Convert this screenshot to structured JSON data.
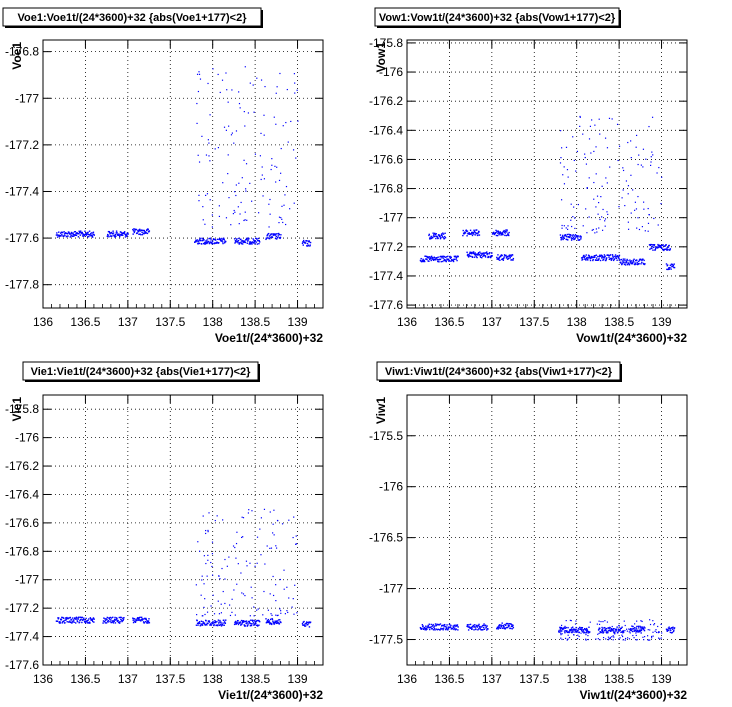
{
  "chart_data": [
    {
      "type": "scatter",
      "title": "Voe1:Voe1t/(24*3600)+32 {abs(Voe1+177)<2}",
      "xlabel": "Voe1t/(24*3600)+32",
      "ylabel": "Voe1",
      "xlim": [
        136,
        139.3
      ],
      "ylim": [
        -177.9,
        -176.75
      ],
      "xticks": [
        136,
        136.5,
        137,
        137.5,
        138,
        138.5,
        139
      ],
      "xtick_labels": [
        "136",
        "136.5",
        "137",
        "137.5",
        "138",
        "138.5",
        "139"
      ],
      "yticks": [
        -176.8,
        -177,
        -177.2,
        -177.4,
        -177.6,
        -177.8
      ],
      "ytick_labels": [
        "-176.8",
        "-177",
        "-177.2",
        "-177.4",
        "-177.6",
        "-177.8"
      ],
      "grid": true,
      "marker_color": "#0000ff",
      "bands": [
        {
          "x": [
            136.15,
            136.6
          ],
          "y": -177.58
        },
        {
          "x": [
            136.75,
            137.0
          ],
          "y": -177.58
        },
        {
          "x": [
            137.05,
            137.25
          ],
          "y": -177.57
        },
        {
          "x": [
            137.78,
            138.15
          ],
          "y": -177.61
        },
        {
          "x": [
            138.25,
            138.55
          ],
          "y": -177.61
        },
        {
          "x": [
            138.62,
            138.8
          ],
          "y": -177.59
        },
        {
          "x": [
            139.05,
            139.15
          ],
          "y": -177.62
        }
      ],
      "scatter_x": [
        137.8,
        139.0
      ],
      "scatter_y": [
        -177.55,
        -176.85
      ]
    },
    {
      "type": "scatter",
      "title": "Vow1:Vow1t/(24*3600)+32 {abs(Vow1+177)<2}",
      "xlabel": "Vow1t/(24*3600)+32",
      "ylabel": "Vow1",
      "xlim": [
        136,
        139.3
      ],
      "ylim": [
        -177.62,
        -175.78
      ],
      "xticks": [
        136,
        136.5,
        137,
        137.5,
        138,
        138.5,
        139
      ],
      "xtick_labels": [
        "136",
        "136.5",
        "137",
        "137.5",
        "138",
        "138.5",
        "139"
      ],
      "yticks": [
        -175.8,
        -176,
        -176.2,
        -176.4,
        -176.6,
        -176.8,
        -177,
        -177.2,
        -177.4,
        -177.6
      ],
      "ytick_labels": [
        "-175.8",
        "-176",
        "-176.2",
        "-176.4",
        "-176.6",
        "-176.8",
        "-177",
        "-177.2",
        "-177.4",
        "-177.6"
      ],
      "grid": true,
      "marker_color": "#0000ff",
      "bands": [
        {
          "x": [
            136.15,
            136.6
          ],
          "y": -177.28
        },
        {
          "x": [
            136.7,
            137.0
          ],
          "y": -177.25
        },
        {
          "x": [
            137.05,
            137.25
          ],
          "y": -177.27
        },
        {
          "x": [
            136.25,
            136.45
          ],
          "y": -177.12
        },
        {
          "x": [
            136.65,
            136.85
          ],
          "y": -177.1
        },
        {
          "x": [
            137.0,
            137.2
          ],
          "y": -177.1
        },
        {
          "x": [
            137.8,
            138.05
          ],
          "y": -177.13
        },
        {
          "x": [
            138.05,
            138.5
          ],
          "y": -177.27
        },
        {
          "x": [
            138.5,
            138.8
          ],
          "y": -177.3
        },
        {
          "x": [
            138.85,
            139.1
          ],
          "y": -177.2
        },
        {
          "x": [
            139.05,
            139.15
          ],
          "y": -177.33
        }
      ],
      "scatter_x": [
        137.8,
        139.0
      ],
      "scatter_y": [
        -177.1,
        -176.3
      ]
    },
    {
      "type": "scatter",
      "title": "Vie1:Vie1t/(24*3600)+32 {abs(Vie1+177)<2}",
      "xlabel": "Vie1t/(24*3600)+32",
      "ylabel": "Vie1",
      "xlim": [
        136,
        139.3
      ],
      "ylim": [
        -177.6,
        -175.7
      ],
      "xticks": [
        136,
        136.5,
        137,
        137.5,
        138,
        138.5,
        139
      ],
      "xtick_labels": [
        "136",
        "136.5",
        "137",
        "137.5",
        "138",
        "138.5",
        "139"
      ],
      "yticks": [
        -175.8,
        -176,
        -176.2,
        -176.4,
        -176.6,
        -176.8,
        -177,
        -177.2,
        -177.4,
        -177.6
      ],
      "ytick_labels": [
        "-175.8",
        "-176",
        "-176.2",
        "-176.4",
        "-176.6",
        "-176.8",
        "-177",
        "-177.2",
        "-177.4",
        "-177.6"
      ],
      "grid": true,
      "marker_color": "#0000ff",
      "bands": [
        {
          "x": [
            136.15,
            136.6
          ],
          "y": -177.28
        },
        {
          "x": [
            136.7,
            136.95
          ],
          "y": -177.28
        },
        {
          "x": [
            137.05,
            137.25
          ],
          "y": -177.28
        },
        {
          "x": [
            137.8,
            138.15
          ],
          "y": -177.3
        },
        {
          "x": [
            138.25,
            138.55
          ],
          "y": -177.3
        },
        {
          "x": [
            138.62,
            138.8
          ],
          "y": -177.29
        },
        {
          "x": [
            139.05,
            139.15
          ],
          "y": -177.31
        }
      ],
      "scatter_x": [
        137.8,
        139.0
      ],
      "scatter_y": [
        -177.25,
        -176.5
      ]
    },
    {
      "type": "scatter",
      "title": "Viw1:Viw1t/(24*3600)+32 {abs(Viw1+177)<2}",
      "xlabel": "Viw1t/(24*3600)+32",
      "ylabel": "Viw1",
      "xlim": [
        136,
        139.3
      ],
      "ylim": [
        -177.75,
        -175.1
      ],
      "xticks": [
        136,
        136.5,
        137,
        137.5,
        138,
        138.5,
        139
      ],
      "xtick_labels": [
        "136",
        "136.5",
        "137",
        "137.5",
        "138",
        "138.5",
        "139"
      ],
      "yticks": [
        -175.5,
        -176,
        -176.5,
        -177,
        -177.5
      ],
      "ytick_labels": [
        "-175.5",
        "-176",
        "-176.5",
        "-177",
        "-177.5"
      ],
      "grid": true,
      "marker_color": "#0000ff",
      "bands": [
        {
          "x": [
            136.15,
            136.6
          ],
          "y": -177.37
        },
        {
          "x": [
            136.7,
            136.95
          ],
          "y": -177.37
        },
        {
          "x": [
            137.05,
            137.25
          ],
          "y": -177.36
        },
        {
          "x": [
            137.78,
            138.15
          ],
          "y": -177.4
        },
        {
          "x": [
            138.25,
            138.55
          ],
          "y": -177.4
        },
        {
          "x": [
            138.62,
            138.8
          ],
          "y": -177.39
        },
        {
          "x": [
            139.05,
            139.15
          ],
          "y": -177.4
        }
      ],
      "scatter_x": [
        137.8,
        139.0
      ],
      "scatter_y": [
        -177.5,
        -177.3
      ]
    }
  ]
}
